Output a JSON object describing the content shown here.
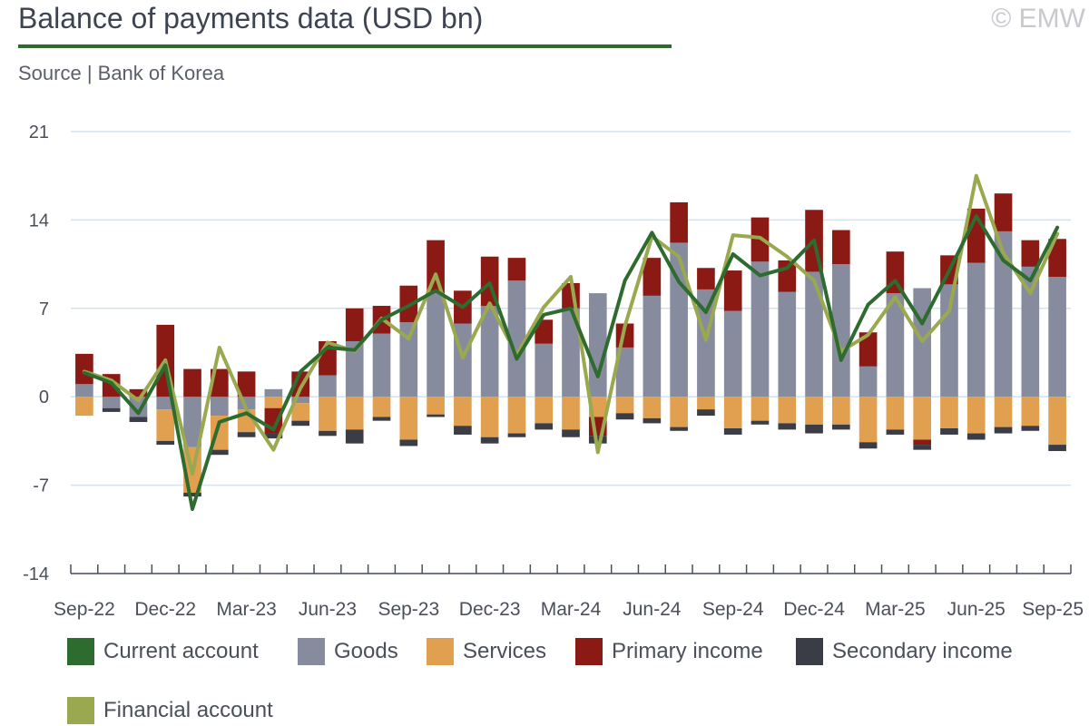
{
  "header": {
    "title": "Balance of payments data (USD bn)",
    "source": "Source | Bank of Korea",
    "watermark": "© EMW"
  },
  "chart_data": {
    "type": "bar",
    "stacked": true,
    "x": [
      "Sep-22",
      "Oct-22",
      "Nov-22",
      "Dec-22",
      "Jan-23",
      "Feb-23",
      "Mar-23",
      "Apr-23",
      "May-23",
      "Jun-23",
      "Jul-23",
      "Aug-23",
      "Sep-23",
      "Oct-23",
      "Nov-23",
      "Dec-23",
      "Jan-24",
      "Feb-24",
      "Mar-24",
      "Apr-24",
      "May-24",
      "Jun-24",
      "Jul-24",
      "Aug-24",
      "Sep-24",
      "Oct-24",
      "Nov-24",
      "Dec-24",
      "Jan-25",
      "Feb-25",
      "Mar-25",
      "Apr-25",
      "May-25",
      "Jun-25",
      "Jul-25",
      "Aug-25",
      "Sep-25"
    ],
    "tick_labels": [
      "Sep-22",
      "Dec-22",
      "Mar-23",
      "Jun-23",
      "Sep-23",
      "Dec-23",
      "Mar-24",
      "Jun-24",
      "Sep-24",
      "Dec-24",
      "Mar-25",
      "Jun-25",
      "Sep-25"
    ],
    "ylim": [
      -14,
      21
    ],
    "yticks": [
      -14,
      -7,
      0,
      7,
      14,
      21
    ],
    "grid": true,
    "legend_position": "bottom",
    "series": [
      {
        "name": "Goods",
        "kind": "bar",
        "color": "#878b9e",
        "values": [
          1.0,
          -0.9,
          -1.6,
          -1.0,
          -4.0,
          -1.5,
          -1.0,
          0.6,
          -0.5,
          1.7,
          4.4,
          5.0,
          5.9,
          8.2,
          5.8,
          7.2,
          9.2,
          4.2,
          7.0,
          8.2,
          3.9,
          8.0,
          12.2,
          8.5,
          6.8,
          10.7,
          8.3,
          9.9,
          10.5,
          2.4,
          8.2,
          8.6,
          8.9,
          10.6,
          13.1,
          10.3,
          9.5
        ]
      },
      {
        "name": "Services",
        "kind": "bar",
        "color": "#e0a050",
        "values": [
          -1.5,
          0.0,
          0.0,
          -2.5,
          -3.6,
          -2.7,
          -1.8,
          -0.9,
          -1.4,
          -2.7,
          -2.6,
          -1.6,
          -3.4,
          -1.4,
          -2.3,
          -3.2,
          -2.9,
          -2.1,
          -2.6,
          -1.6,
          -1.3,
          -1.7,
          -2.4,
          -1.0,
          -2.5,
          -1.9,
          -2.1,
          -2.2,
          -2.2,
          -3.6,
          -2.6,
          -3.4,
          -2.5,
          -2.9,
          -2.4,
          -2.3,
          -3.8
        ]
      },
      {
        "name": "Primary income",
        "kind": "bar",
        "color": "#8b1a14",
        "values": [
          2.4,
          1.8,
          0.6,
          5.7,
          2.2,
          2.2,
          2.0,
          -2.0,
          2.0,
          2.7,
          2.6,
          2.2,
          2.9,
          4.2,
          2.6,
          3.9,
          1.8,
          1.9,
          2.0,
          -1.5,
          1.9,
          3.0,
          3.2,
          1.7,
          3.2,
          3.5,
          2.5,
          4.9,
          2.7,
          2.7,
          3.3,
          -0.4,
          2.3,
          4.3,
          3.0,
          2.1,
          3.0
        ]
      },
      {
        "name": "Secondary income",
        "kind": "bar",
        "color": "#3a3d46",
        "values": [
          0.0,
          -0.3,
          -0.4,
          -0.3,
          -0.3,
          -0.4,
          -0.4,
          -0.4,
          -0.4,
          -0.4,
          -1.1,
          -0.3,
          -0.5,
          -0.2,
          -0.7,
          -0.5,
          -0.3,
          -0.5,
          -0.6,
          -0.6,
          -0.5,
          -0.4,
          -0.3,
          -0.5,
          -0.5,
          -0.3,
          -0.5,
          -0.7,
          -0.4,
          -0.5,
          -0.4,
          -0.4,
          -0.5,
          -0.5,
          -0.5,
          -0.4,
          -0.5
        ]
      },
      {
        "name": "Current account",
        "kind": "line",
        "color": "#2e6b2f",
        "values": [
          1.9,
          1.1,
          -1.3,
          2.5,
          -8.9,
          -2.0,
          -1.3,
          -2.6,
          2.0,
          3.9,
          3.7,
          6.1,
          7.2,
          8.4,
          7.1,
          9.0,
          3.0,
          6.5,
          7.0,
          1.6,
          9.2,
          13.0,
          9.1,
          6.7,
          11.3,
          9.6,
          10.2,
          12.4,
          2.9,
          7.3,
          9.2,
          5.8,
          10.0,
          14.3,
          10.8,
          9.2,
          13.4
        ]
      },
      {
        "name": "Financial account",
        "kind": "line",
        "color": "#9aa84f",
        "values": [
          2.0,
          1.3,
          -0.3,
          2.9,
          -6.1,
          3.9,
          -1.0,
          -4.2,
          0.7,
          4.3,
          3.6,
          6.2,
          4.6,
          9.7,
          3.1,
          7.4,
          3.3,
          7.1,
          9.5,
          -4.4,
          5.6,
          12.7,
          11.1,
          4.5,
          12.8,
          12.6,
          11.1,
          9.2,
          3.6,
          4.9,
          7.9,
          4.4,
          6.8,
          17.5,
          11.4,
          8.2,
          12.9
        ]
      }
    ],
    "legend_labels": [
      "Current account",
      "Goods",
      "Services",
      "Primary income",
      "Secondary income",
      "Financial account"
    ]
  }
}
